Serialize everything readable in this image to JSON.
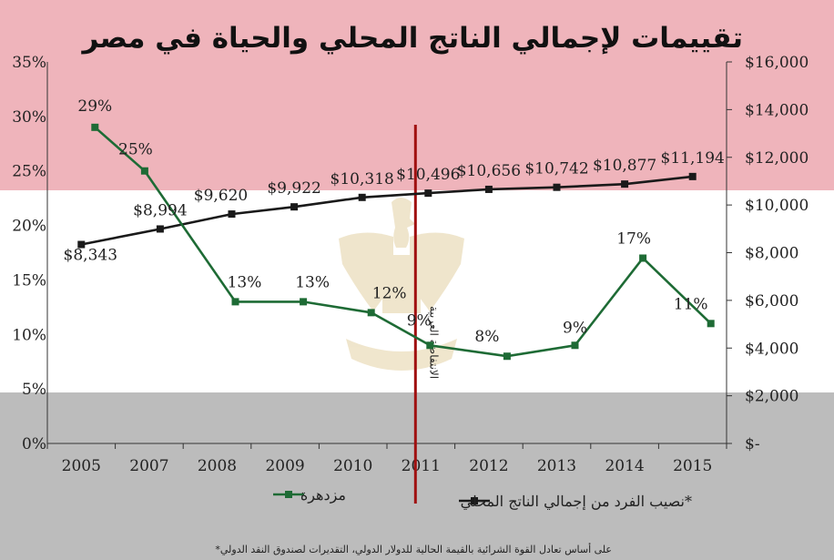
{
  "chart_data": {
    "type": "line",
    "title": "تقييمات لإجمالي الناتج المحلي والحياة في مصر",
    "categories": [
      "2005",
      "2007",
      "2008",
      "2009",
      "2010",
      "2011",
      "2012",
      "2013",
      "2014",
      "2015"
    ],
    "series": [
      {
        "name": "مزدهرة",
        "axis": "left",
        "color": "#1e6b35",
        "values": [
          29,
          25,
          13,
          13,
          12,
          9,
          8,
          9,
          17,
          11
        ],
        "labels": [
          "29%",
          "25%",
          "13%",
          "13%",
          "12%",
          "9%",
          "8%",
          "9%",
          "17%",
          "11%"
        ]
      },
      {
        "name": "نصيب الفرد من إجمالي الناتج المحلي*",
        "axis": "right",
        "color": "#1a1a1a",
        "values": [
          8343,
          8994,
          9620,
          9922,
          10318,
          10496,
          10656,
          10742,
          10877,
          11194
        ],
        "labels": [
          "$8,343",
          "$8,994",
          "$9,620",
          "$9,922",
          "$10,318",
          "$10,496",
          "$10,656",
          "$10,742",
          "$10,877",
          "$11,194"
        ]
      }
    ],
    "left_axis": {
      "min": 0,
      "max": 35,
      "ticks": [
        0,
        5,
        10,
        15,
        20,
        25,
        30,
        35
      ],
      "tick_labels": [
        "0%",
        "5%",
        "10%",
        "15%",
        "20%",
        "25%",
        "30%",
        "35%"
      ]
    },
    "right_axis": {
      "min": 0,
      "max": 16000,
      "ticks": [
        0,
        2000,
        4000,
        6000,
        8000,
        10000,
        12000,
        14000,
        16000
      ],
      "tick_labels": [
        "$-",
        "$2,000",
        "$4,000",
        "$6,000",
        "$8,000",
        "$10,000",
        "$12,000",
        "$14,000",
        "$16,000"
      ]
    },
    "annotation": {
      "text": "الانتفاضة العربية",
      "at_category": "2011",
      "color": "#a01010"
    },
    "background_bands": [
      "#efb4bb",
      "#ffffff",
      "#bcbcbc"
    ],
    "footnote": "*على أساس تعادل القوة الشرائية بالقيمة الحالية للدولار الدولي، التقديرات لصندوق النقد الدولي",
    "grid": false,
    "legend_position": "bottom"
  }
}
